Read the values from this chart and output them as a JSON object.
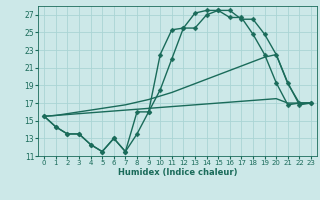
{
  "xlabel": "Humidex (Indice chaleur)",
  "bg_color": "#cce8e8",
  "grid_color": "#aad4d4",
  "line_color": "#1a6b5a",
  "xlim": [
    -0.5,
    23.5
  ],
  "ylim": [
    11,
    28
  ],
  "yticks": [
    11,
    13,
    15,
    17,
    19,
    21,
    23,
    25,
    27
  ],
  "xticks": [
    0,
    1,
    2,
    3,
    4,
    5,
    6,
    7,
    8,
    9,
    10,
    11,
    12,
    13,
    14,
    15,
    16,
    17,
    18,
    19,
    20,
    21,
    22,
    23
  ],
  "series": [
    {
      "x": [
        0,
        1,
        2,
        3,
        4,
        5,
        6,
        7,
        8,
        9,
        10,
        11,
        12,
        13,
        14,
        15,
        16,
        17,
        18,
        19,
        20,
        21,
        22,
        23
      ],
      "y": [
        15.5,
        14.3,
        13.5,
        13.5,
        12.3,
        11.5,
        13.0,
        11.5,
        16.0,
        16.0,
        22.5,
        25.3,
        25.5,
        27.2,
        27.5,
        27.5,
        26.7,
        26.7,
        24.8,
        22.5,
        19.3,
        16.8,
        17.0,
        17.0
      ],
      "marker": "D",
      "markersize": 2.5,
      "linewidth": 1.0
    },
    {
      "x": [
        0,
        1,
        2,
        3,
        4,
        5,
        6,
        7,
        8,
        9,
        10,
        11,
        12,
        13,
        14,
        15,
        16,
        17,
        18,
        19,
        20,
        21,
        22,
        23
      ],
      "y": [
        15.5,
        14.3,
        13.5,
        13.5,
        12.3,
        11.5,
        13.0,
        11.5,
        13.5,
        16.0,
        18.5,
        22.0,
        25.5,
        25.5,
        27.0,
        27.5,
        27.5,
        26.5,
        26.5,
        24.8,
        22.5,
        19.3,
        16.8,
        17.0
      ],
      "marker": "D",
      "markersize": 2.5,
      "linewidth": 1.0
    },
    {
      "x": [
        0,
        1,
        2,
        3,
        4,
        5,
        6,
        7,
        8,
        9,
        10,
        11,
        12,
        13,
        14,
        15,
        16,
        17,
        18,
        19,
        20,
        21,
        22,
        23
      ],
      "y": [
        15.5,
        15.6,
        15.8,
        16.0,
        16.2,
        16.4,
        16.6,
        16.8,
        17.1,
        17.4,
        17.8,
        18.2,
        18.7,
        19.2,
        19.7,
        20.2,
        20.7,
        21.2,
        21.7,
        22.2,
        22.5,
        19.2,
        17.0,
        17.0
      ],
      "marker": null,
      "markersize": 0,
      "linewidth": 1.0
    },
    {
      "x": [
        0,
        1,
        2,
        3,
        4,
        5,
        6,
        7,
        8,
        9,
        10,
        11,
        12,
        13,
        14,
        15,
        16,
        17,
        18,
        19,
        20,
        21,
        22,
        23
      ],
      "y": [
        15.5,
        15.6,
        15.7,
        15.8,
        15.9,
        16.0,
        16.1,
        16.2,
        16.3,
        16.4,
        16.5,
        16.6,
        16.7,
        16.8,
        16.9,
        17.0,
        17.1,
        17.2,
        17.3,
        17.4,
        17.5,
        17.0,
        17.0,
        17.0
      ],
      "marker": null,
      "markersize": 0,
      "linewidth": 1.0
    }
  ]
}
